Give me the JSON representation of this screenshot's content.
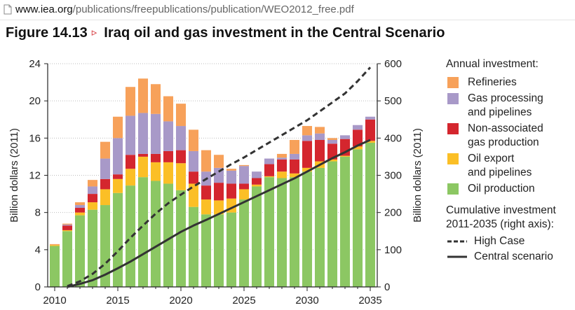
{
  "browser": {
    "url_domain": "www.iea.org",
    "url_path": "/publications/freepublications/publication/WEO2012_free.pdf"
  },
  "figure": {
    "label": "Figure 14.13",
    "arrow": "▹",
    "title": "Iraq oil and gas investment in the Central Scenario"
  },
  "legend": {
    "title": "Annual investment:",
    "items": [
      {
        "label_line1": "Refineries",
        "label_line2": "",
        "color": "#f7a15a"
      },
      {
        "label_line1": "Gas processing",
        "label_line2": "and pipelines",
        "color": "#a899c8"
      },
      {
        "label_line1": "Non-associated",
        "label_line2": "gas production",
        "color": "#d4262e"
      },
      {
        "label_line1": "Oil export",
        "label_line2": "and pipelines",
        "color": "#fbbf26"
      },
      {
        "label_line1": "Oil production",
        "label_line2": "",
        "color": "#8cc763"
      }
    ],
    "cumulative_title_line1": "Cumulative investment",
    "cumulative_title_line2": "2011-2035 (right axis):",
    "lines": [
      {
        "label": "High Case",
        "style": "dashed"
      },
      {
        "label": "Central scenario",
        "style": "solid"
      }
    ]
  },
  "chart_data": {
    "type": "bar",
    "stacked": true,
    "ylabel": "Billion dollars (2011)",
    "ylabel_right": "Billion dollars (2011)",
    "ylim": [
      0,
      24
    ],
    "ylim_right": [
      0,
      600
    ],
    "yticks": [
      "0",
      "4",
      "8",
      "12",
      "16",
      "20",
      "24"
    ],
    "yticks_right": [
      "0",
      "100",
      "200",
      "300",
      "400",
      "500",
      "600"
    ],
    "x_tick_labels": [
      "2010",
      "2015",
      "2020",
      "2025",
      "2030",
      "2035"
    ],
    "x_tick_years": [
      2010,
      2015,
      2020,
      2025,
      2030,
      2035
    ],
    "grid": true,
    "legend_position": "right",
    "categories": [
      2010,
      2011,
      2012,
      2013,
      2014,
      2015,
      2016,
      2017,
      2018,
      2019,
      2020,
      2021,
      2022,
      2023,
      2024,
      2025,
      2026,
      2027,
      2028,
      2029,
      2030,
      2031,
      2032,
      2033,
      2034,
      2035
    ],
    "series": [
      {
        "name": "Oil production",
        "color": "#8cc763",
        "values": [
          4.4,
          6.0,
          7.7,
          8.3,
          8.8,
          10.1,
          10.9,
          11.8,
          11.4,
          11.1,
          10.4,
          8.6,
          7.8,
          7.8,
          8.0,
          9.4,
          10.8,
          11.8,
          11.7,
          11.8,
          12.4,
          12.8,
          13.5,
          14.0,
          14.8,
          15.5
        ]
      },
      {
        "name": "Oil export and pipelines",
        "color": "#fbbf26",
        "values": [
          0.1,
          0.1,
          0.3,
          0.8,
          1.7,
          1.5,
          1.8,
          2.2,
          2.0,
          2.3,
          2.9,
          2.5,
          1.6,
          1.5,
          1.5,
          1.1,
          0.2,
          0.1,
          0.7,
          0.4,
          0.4,
          0.7,
          0.2,
          0.1,
          0.3,
          0.2
        ]
      },
      {
        "name": "Non-associated gas production",
        "color": "#d4262e",
        "values": [
          0.0,
          0.5,
          0.5,
          0.9,
          1.1,
          0.5,
          1.5,
          0.3,
          0.9,
          1.2,
          1.4,
          1.3,
          1.5,
          1.9,
          1.6,
          0.6,
          0.7,
          1.3,
          1.3,
          1.5,
          2.9,
          2.3,
          1.7,
          1.8,
          1.8,
          2.3
        ]
      },
      {
        "name": "Gas processing and pipelines",
        "color": "#a899c8",
        "values": [
          0.0,
          0.1,
          0.3,
          0.8,
          2.2,
          3.9,
          4.2,
          4.4,
          4.3,
          3.2,
          2.6,
          2.2,
          1.5,
          1.6,
          1.4,
          1.9,
          0.7,
          0.6,
          0.2,
          0.6,
          0.6,
          0.7,
          0.4,
          0.4,
          0.5,
          0.3
        ]
      },
      {
        "name": "Refineries",
        "color": "#f7a15a",
        "values": [
          0.1,
          0.1,
          0.3,
          0.7,
          1.8,
          2.3,
          3.1,
          3.7,
          3.2,
          2.7,
          2.4,
          2.3,
          2.3,
          1.4,
          0.2,
          0.1,
          0.0,
          0.0,
          0.4,
          1.5,
          1.0,
          0.7,
          0.2,
          0.0,
          0.0,
          0.0
        ]
      }
    ],
    "lines": [
      {
        "name": "High Case",
        "style": "dashed",
        "axis": "right",
        "x": [
          2011,
          2012,
          2013,
          2014,
          2015,
          2016,
          2017,
          2018,
          2019,
          2020,
          2021,
          2022,
          2023,
          2024,
          2025,
          2026,
          2027,
          2028,
          2029,
          2030,
          2031,
          2032,
          2033,
          2034,
          2035
        ],
        "values": [
          2,
          15,
          35,
          62,
          96,
          132,
          165,
          197,
          225,
          248,
          270,
          290,
          310,
          330,
          348,
          368,
          388,
          408,
          428,
          448,
          472,
          496,
          520,
          553,
          590
        ]
      },
      {
        "name": "Central scenario",
        "style": "solid",
        "axis": "right",
        "x": [
          2011,
          2012,
          2013,
          2014,
          2015,
          2016,
          2017,
          2018,
          2019,
          2020,
          2021,
          2022,
          2023,
          2024,
          2025,
          2026,
          2027,
          2028,
          2029,
          2030,
          2031,
          2032,
          2033,
          2034,
          2035
        ],
        "values": [
          0,
          8,
          18,
          33,
          50,
          68,
          88,
          108,
          128,
          148,
          165,
          180,
          196,
          212,
          228,
          244,
          260,
          276,
          292,
          310,
          328,
          346,
          362,
          380,
          395
        ]
      }
    ]
  }
}
